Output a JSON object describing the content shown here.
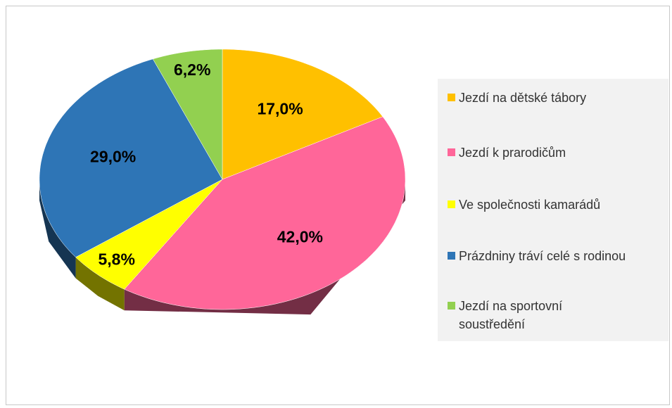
{
  "chart_data": {
    "type": "pie",
    "categories": [
      "Jezdí na dětské tábory",
      "Jezdí k prarodičům",
      "Ve společnosti kamarádů",
      "Prázdniny tráví celé s rodinou",
      "Jezdí na sportovní soustředění"
    ],
    "values": [
      17.0,
      42.0,
      5.8,
      29.0,
      6.2
    ],
    "value_labels": [
      "17,0%",
      "42,0%",
      "5,8%",
      "29,0%",
      "6,2%"
    ],
    "colors": [
      "#ffc000",
      "#ff6699",
      "#ffff00",
      "#2e75b6",
      "#92d050"
    ],
    "legend": "right"
  }
}
